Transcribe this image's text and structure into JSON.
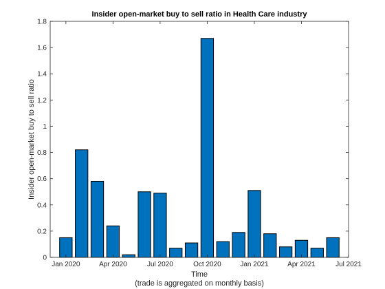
{
  "chart_data": {
    "type": "bar",
    "title": "Insider open-market buy to sell ratio in Health Care industry",
    "xlabel": "Time",
    "xlabel_sub": "(trade is aggregated on monthly basis)",
    "ylabel": "Insider open-market buy to sell ratio",
    "ylim": [
      0,
      1.8
    ],
    "yticks": [
      0,
      0.2,
      0.4,
      0.6,
      0.8,
      1,
      1.2,
      1.4,
      1.6,
      1.8
    ],
    "ytick_labels": [
      "0",
      "0.2",
      "0.4",
      "0.6",
      "0.8",
      "1",
      "1.2",
      "1.4",
      "1.6",
      "1.8"
    ],
    "xlim": [
      "2019-12",
      "2021-07"
    ],
    "xticks": [
      "2020-01",
      "2020-04",
      "2020-07",
      "2020-10",
      "2021-01",
      "2021-04",
      "2021-07"
    ],
    "xtick_labels": [
      "Jan 2020",
      "Apr 2020",
      "Jul 2020",
      "Oct 2020",
      "Jan 2021",
      "Apr 2021",
      "Jul 2021"
    ],
    "categories": [
      "2020-01",
      "2020-02",
      "2020-03",
      "2020-04",
      "2020-05",
      "2020-06",
      "2020-07",
      "2020-08",
      "2020-09",
      "2020-10",
      "2020-11",
      "2020-12",
      "2021-01",
      "2021-02",
      "2021-03",
      "2021-04",
      "2021-05",
      "2021-06"
    ],
    "values": [
      0.15,
      0.82,
      0.58,
      0.24,
      0.02,
      0.5,
      0.49,
      0.07,
      0.11,
      1.67,
      0.12,
      0.19,
      0.51,
      0.18,
      0.08,
      0.13,
      0.07,
      0.15
    ],
    "grid": false,
    "colors": {
      "bar": "#0072BD"
    }
  }
}
